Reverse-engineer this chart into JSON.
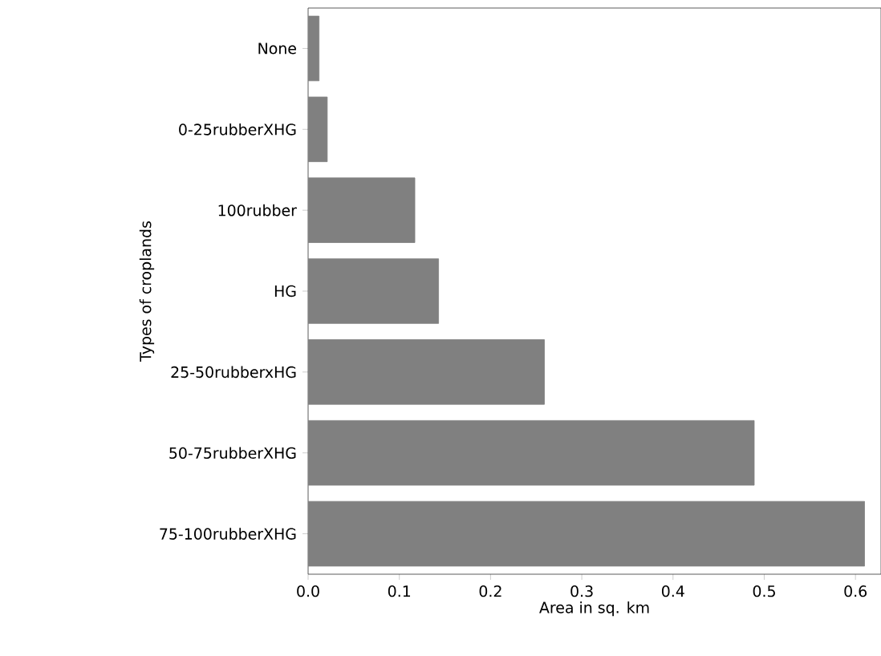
{
  "chart_data": {
    "type": "bar",
    "orientation": "horizontal",
    "xlabel": "Area in sq. km",
    "ylabel": "Types of croplands",
    "categories": [
      "None",
      "0-25rubberXHG",
      "100rubber",
      "HG",
      "25-50rubberxHG",
      "50-75rubberXHG",
      "75-100rubberXHG"
    ],
    "values": [
      0.012,
      0.021,
      0.117,
      0.143,
      0.259,
      0.489,
      0.61
    ],
    "color": "#808080",
    "xlim": [
      0.0,
      0.628
    ],
    "xticks": [
      {
        "value": 0.0,
        "label": "0.0"
      },
      {
        "value": 0.1,
        "label": "0.1"
      },
      {
        "value": 0.2,
        "label": "0.2"
      },
      {
        "value": 0.3,
        "label": "0.3"
      },
      {
        "value": 0.4,
        "label": "0.4"
      },
      {
        "value": 0.5,
        "label": "0.5"
      },
      {
        "value": 0.6,
        "label": "0.6"
      }
    ]
  }
}
